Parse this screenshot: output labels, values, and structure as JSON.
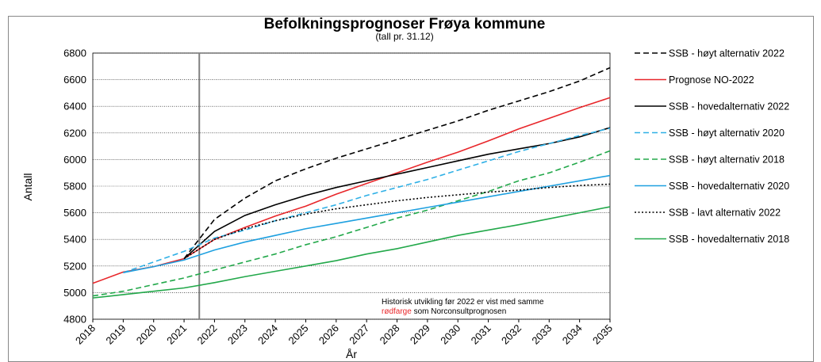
{
  "chart_data": {
    "type": "line",
    "title": "Befolkningsprognoser Frøya kommune",
    "subtitle": "(tall pr. 31.12)",
    "x_label": "År",
    "y_label": "Antall",
    "x": [
      2018,
      2019,
      2020,
      2021,
      2022,
      2023,
      2024,
      2025,
      2026,
      2027,
      2028,
      2029,
      2030,
      2031,
      2032,
      2033,
      2034,
      2035
    ],
    "xlim": [
      2018,
      2035
    ],
    "xticks": [
      2018,
      2019,
      2020,
      2021,
      2022,
      2023,
      2024,
      2025,
      2026,
      2027,
      2028,
      2029,
      2030,
      2031,
      2032,
      2033,
      2034,
      2035
    ],
    "ylim": [
      4800,
      6800
    ],
    "yticks": [
      4800,
      5000,
      5200,
      5400,
      5600,
      5800,
      6000,
      6200,
      6400,
      6600,
      6800
    ],
    "grid": true,
    "vertical_line": 2021.5,
    "legend": "right",
    "annotation": {
      "line1": "Historisk utvikling før 2022 er vist med samme",
      "highlight": "rødfarge",
      "rest": " som Norconsultprognosen",
      "highlight_color": "#e8262a"
    },
    "series": [
      {
        "name": "SSB - høyt alternativ 2022",
        "color": "#000000",
        "dash": "dashed",
        "values": [
          null,
          null,
          null,
          5255,
          5550,
          5710,
          5840,
          5930,
          6010,
          6080,
          6150,
          6220,
          6290,
          6370,
          6440,
          6510,
          6590,
          6690
        ]
      },
      {
        "name": "Prognose NO-2022",
        "color": "#e8262a",
        "dash": "solid",
        "values": [
          5070,
          5155,
          5195,
          5255,
          5400,
          5490,
          5575,
          5650,
          5740,
          5820,
          5900,
          5980,
          6055,
          6140,
          6230,
          6310,
          6390,
          6465
        ]
      },
      {
        "name": "SSB - hovedalternativ 2022",
        "color": "#000000",
        "dash": "solid",
        "values": [
          null,
          null,
          null,
          5255,
          5460,
          5580,
          5660,
          5730,
          5790,
          5840,
          5890,
          5940,
          5990,
          6040,
          6080,
          6120,
          6170,
          6240
        ]
      },
      {
        "name": "SSB - høyt alternativ 2020",
        "color": "#2fb0e6",
        "dash": "dashed",
        "values": [
          null,
          5150,
          5230,
          5310,
          5410,
          5470,
          5540,
          5600,
          5660,
          5730,
          5790,
          5850,
          5920,
          5990,
          6060,
          6120,
          6180,
          6235
        ]
      },
      {
        "name": "SSB - høyt alternativ 2018",
        "color": "#22a84a",
        "dash": "dashed",
        "values": [
          4975,
          5010,
          5060,
          5110,
          5170,
          5230,
          5290,
          5360,
          5420,
          5490,
          5560,
          5620,
          5690,
          5760,
          5840,
          5900,
          5980,
          6065
        ]
      },
      {
        "name": "SSB - hovedalternativ 2020",
        "color": "#1ea0e0",
        "dash": "solid",
        "values": [
          null,
          5150,
          5195,
          5245,
          5320,
          5380,
          5430,
          5480,
          5520,
          5560,
          5600,
          5640,
          5680,
          5720,
          5760,
          5800,
          5840,
          5880
        ]
      },
      {
        "name": "SSB - lavt alternativ 2022",
        "color": "#000000",
        "dash": "dotted",
        "values": [
          null,
          null,
          null,
          5255,
          5400,
          5480,
          5540,
          5590,
          5630,
          5660,
          5690,
          5715,
          5735,
          5755,
          5770,
          5790,
          5805,
          5815
        ]
      },
      {
        "name": "SSB - hovedalternativ 2018",
        "color": "#22a84a",
        "dash": "solid",
        "values": [
          4960,
          4985,
          5010,
          5035,
          5075,
          5120,
          5160,
          5200,
          5240,
          5290,
          5330,
          5380,
          5430,
          5470,
          5510,
          5555,
          5600,
          5645
        ]
      }
    ]
  }
}
